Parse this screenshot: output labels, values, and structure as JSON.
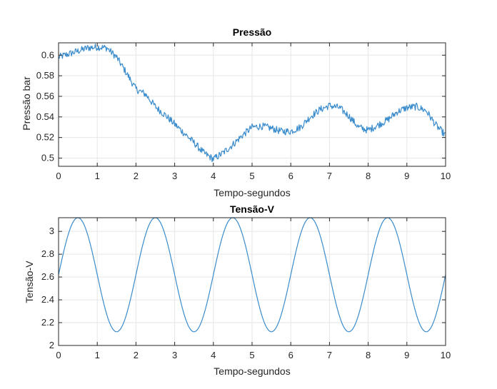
{
  "chart_data": [
    {
      "type": "line",
      "title": "Pressão",
      "xlabel": "Tempo-segundos",
      "ylabel": "Pressão bar",
      "xlim": [
        0,
        10
      ],
      "ylim": [
        0.492,
        0.612
      ],
      "xticks": [
        0,
        1,
        2,
        3,
        4,
        5,
        6,
        7,
        8,
        9,
        10
      ],
      "yticks": [
        0.5,
        0.52,
        0.54,
        0.56,
        0.58,
        0.6
      ],
      "ytick_labels": [
        "0.5",
        "0.52",
        "0.54",
        "0.56",
        "0.58",
        "0.6"
      ],
      "grid": true,
      "color": "#3a8ccc",
      "series": [
        {
          "noise_amplitude": 0.0035,
          "points": [
            [
              0.0,
              0.598
            ],
            [
              0.25,
              0.601
            ],
            [
              0.5,
              0.604
            ],
            [
              0.75,
              0.607
            ],
            [
              1.0,
              0.608
            ],
            [
              1.25,
              0.607
            ],
            [
              1.5,
              0.598
            ],
            [
              1.75,
              0.583
            ],
            [
              2.0,
              0.567
            ],
            [
              2.25,
              0.562
            ],
            [
              2.5,
              0.55
            ],
            [
              2.75,
              0.542
            ],
            [
              3.0,
              0.533
            ],
            [
              3.25,
              0.524
            ],
            [
              3.5,
              0.515
            ],
            [
              3.75,
              0.505
            ],
            [
              4.0,
              0.499
            ],
            [
              4.25,
              0.505
            ],
            [
              4.5,
              0.513
            ],
            [
              4.75,
              0.522
            ],
            [
              5.0,
              0.53
            ],
            [
              5.25,
              0.531
            ],
            [
              5.5,
              0.529
            ],
            [
              5.75,
              0.526
            ],
            [
              6.0,
              0.526
            ],
            [
              6.25,
              0.53
            ],
            [
              6.5,
              0.54
            ],
            [
              6.75,
              0.547
            ],
            [
              7.0,
              0.551
            ],
            [
              7.25,
              0.549
            ],
            [
              7.5,
              0.541
            ],
            [
              7.75,
              0.53
            ],
            [
              8.0,
              0.527
            ],
            [
              8.25,
              0.532
            ],
            [
              8.5,
              0.537
            ],
            [
              8.75,
              0.545
            ],
            [
              9.0,
              0.549
            ],
            [
              9.25,
              0.55
            ],
            [
              9.5,
              0.546
            ],
            [
              9.75,
              0.532
            ],
            [
              10.0,
              0.522
            ]
          ]
        }
      ]
    },
    {
      "type": "line",
      "title": "Tensão-V",
      "xlabel": "Tempo-segundos",
      "ylabel": "Tensão-V",
      "xlim": [
        0,
        10
      ],
      "ylim": [
        2,
        3.12
      ],
      "xticks": [
        0,
        1,
        2,
        3,
        4,
        5,
        6,
        7,
        8,
        9,
        10
      ],
      "yticks": [
        2,
        2.2,
        2.4,
        2.6,
        2.8,
        3
      ],
      "ytick_labels": [
        "2",
        "2.2",
        "2.4",
        "2.6",
        "2.8",
        "3"
      ],
      "grid": true,
      "color": "#3a8ccc",
      "series": [
        {
          "function": "sine",
          "offset": 2.62,
          "amplitude": 0.5,
          "frequency_hz": 0.5,
          "phase": 0,
          "samples": 401
        }
      ]
    }
  ]
}
